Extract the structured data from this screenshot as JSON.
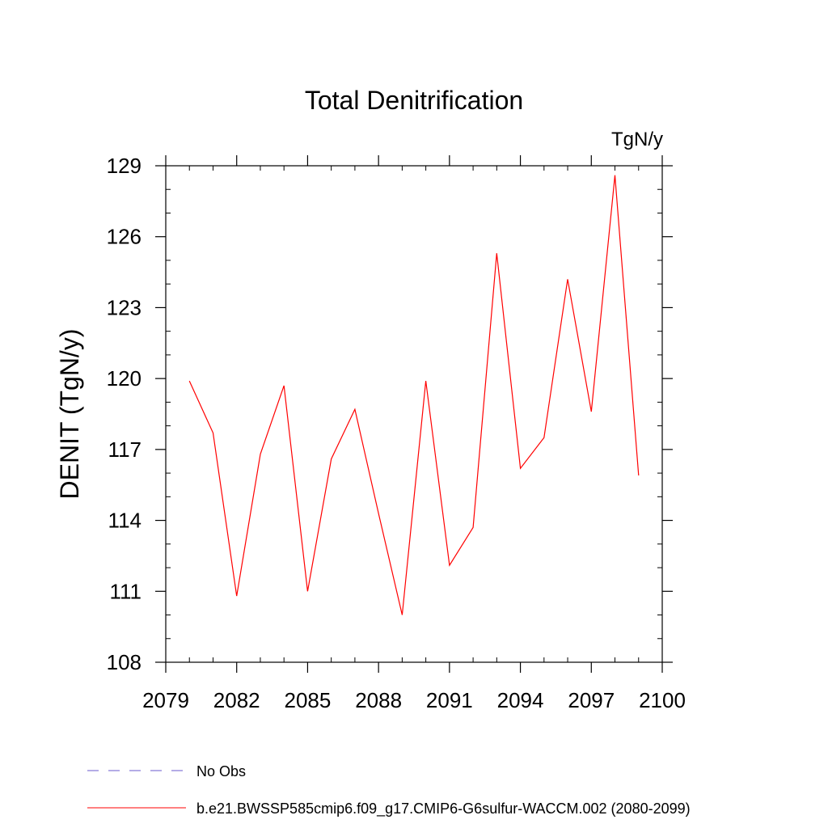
{
  "chart_data": {
    "type": "line",
    "title": "Total Denitrification",
    "units_label": "TgN/y",
    "ylabel": "DENIT  (TgN/y)",
    "xlabel": "",
    "xlim": [
      2079,
      2100
    ],
    "ylim": [
      108,
      129
    ],
    "x_ticks": [
      2079,
      2082,
      2085,
      2088,
      2091,
      2094,
      2097,
      2100
    ],
    "y_ticks": [
      108,
      111,
      114,
      117,
      120,
      123,
      126,
      129
    ],
    "x_minor_step": 1,
    "y_minor_step": 1,
    "grid": false,
    "legend_position": "bottom-left",
    "series": [
      {
        "name": "No Obs",
        "color": "#6a5acd",
        "style": "dashed",
        "x": [],
        "values": []
      },
      {
        "name": "b.e21.BWSSP585cmip6.f09_g17.CMIP6-G6sulfur-WACCM.002 (2080-2099)",
        "color": "#ff0000",
        "style": "solid",
        "x": [
          2080,
          2081,
          2082,
          2083,
          2084,
          2085,
          2086,
          2087,
          2088,
          2089,
          2090,
          2091,
          2092,
          2093,
          2094,
          2095,
          2096,
          2097,
          2098,
          2099
        ],
        "values": [
          119.9,
          117.7,
          110.8,
          116.8,
          119.7,
          111.0,
          116.6,
          118.7,
          114.3,
          110.0,
          119.9,
          112.1,
          113.7,
          125.3,
          116.2,
          117.5,
          124.2,
          118.6,
          128.6,
          115.9
        ]
      }
    ]
  }
}
